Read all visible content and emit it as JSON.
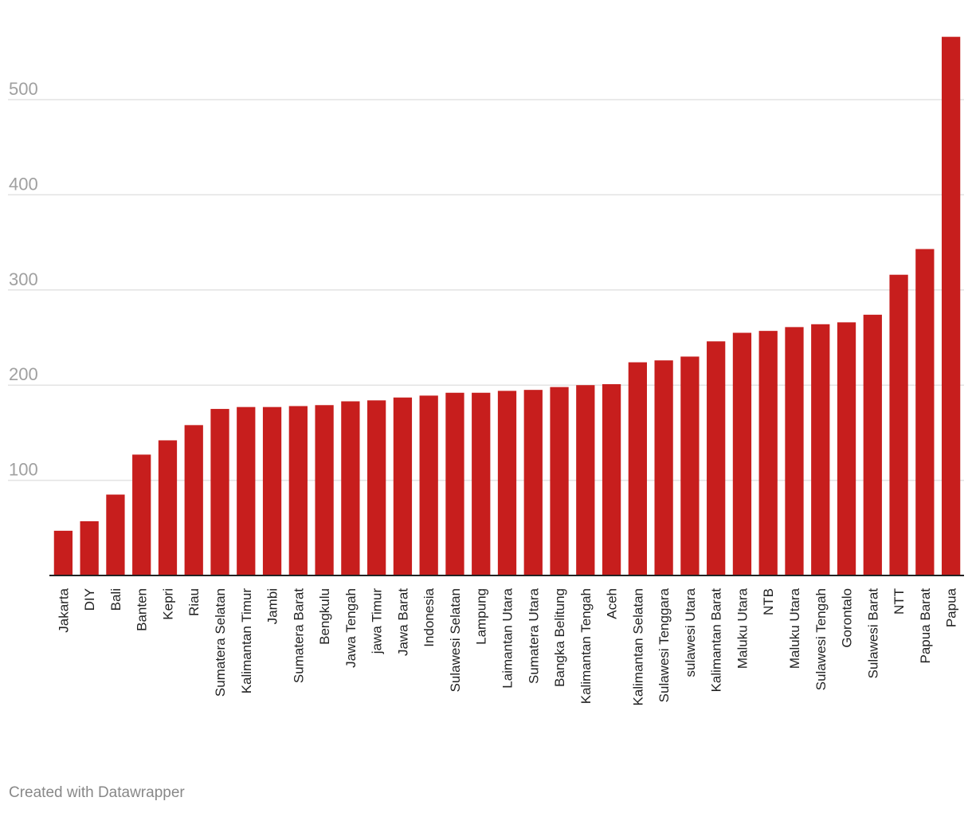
{
  "chart_data": {
    "type": "bar",
    "title": "",
    "xlabel": "",
    "ylabel": "",
    "ylim": [
      0,
      570
    ],
    "yticks": [
      100,
      200,
      300,
      400,
      500
    ],
    "categories": [
      "Jakarta",
      "DIY",
      "Bali",
      "Banten",
      "Kepri",
      "Riau",
      "Sumatera Selatan",
      "Kalimantan Timur",
      "Jambi",
      "Sumatera Barat",
      "Bengkulu",
      "Jawa Tengah",
      "jawa Timur",
      "Jawa Barat",
      "Indonesia",
      "Sulawesi Selatan",
      "Lampung",
      "Laimantan Utara",
      "Sumatera Utara",
      "Bangka Belitung",
      "Kalimantan Tengah",
      "Aceh",
      "Kalimantan Selatan",
      "Sulawesi Tenggara",
      "sulawesi Utara",
      "Kalimantan Barat",
      "Maluku Utara",
      "NTB",
      "Maluku Utara",
      "Sulawesi Tengah",
      "Gorontalo",
      "Sulawesi Barat",
      "NTT",
      "Papua Barat",
      "Papua"
    ],
    "values": [
      47,
      57,
      85,
      127,
      142,
      158,
      175,
      177,
      177,
      178,
      179,
      183,
      184,
      187,
      189,
      192,
      192,
      194,
      195,
      198,
      200,
      201,
      224,
      226,
      230,
      246,
      255,
      257,
      261,
      264,
      266,
      274,
      316,
      343,
      566
    ],
    "bar_color": "#c71e1d",
    "grid": true
  },
  "footer": {
    "credit": "Created with Datawrapper"
  }
}
